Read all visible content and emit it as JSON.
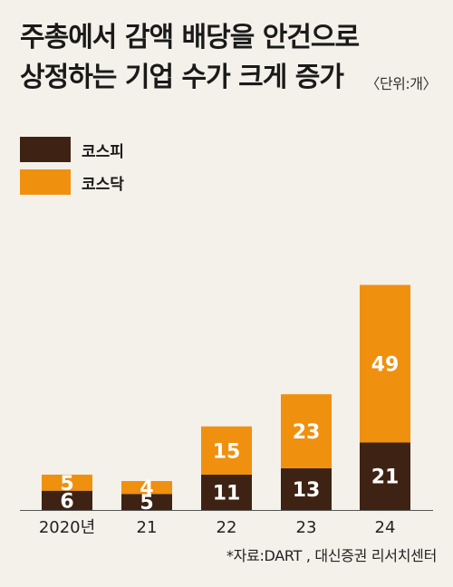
{
  "title_lines": [
    "주총에서 감액 배당을 안건으로",
    "상정하는 기업 수가 크게 증가"
  ],
  "unit": "〈단위:개〉",
  "source": "*자료:DART , 대신증권 리서치센터",
  "colors": {
    "kospi": "#3e2314",
    "kosdaq": "#f0900f",
    "label_light": "#ffffff",
    "axis": "#555555"
  },
  "chart_data": {
    "type": "bar",
    "stacked": true,
    "title": "주총에서 감액 배당을 안건으로 상정하는 기업 수가 크게 증가",
    "ylabel": "",
    "unit": "〈단위:개〉",
    "categories": [
      "2020년",
      "21",
      "22",
      "23",
      "24"
    ],
    "series": [
      {
        "name": "코스피",
        "values": [
          6,
          5,
          11,
          13,
          21
        ]
      },
      {
        "name": "코스닥",
        "values": [
          5,
          4,
          15,
          23,
          49
        ]
      }
    ],
    "legend": "top-left",
    "grid": false
  }
}
